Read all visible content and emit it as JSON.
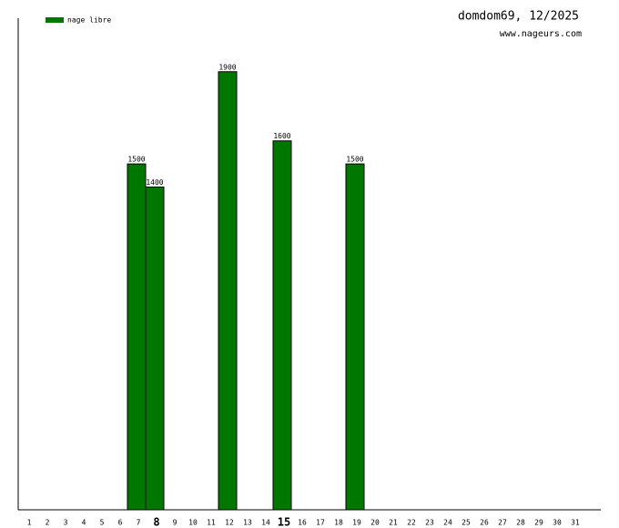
{
  "chart_data": {
    "type": "bar",
    "title": "domdom69, 12/2025",
    "subtitle": "www.nageurs.com",
    "categories": [
      "1",
      "2",
      "3",
      "4",
      "5",
      "6",
      "7",
      "8",
      "9",
      "10",
      "11",
      "12",
      "13",
      "14",
      "15",
      "16",
      "17",
      "18",
      "19",
      "20",
      "21",
      "22",
      "23",
      "24",
      "25",
      "26",
      "27",
      "28",
      "29",
      "30",
      "31"
    ],
    "emphasized_categories": [
      7,
      14
    ],
    "series": [
      {
        "name": "nage libre",
        "color": "#007700",
        "values": [
          null,
          null,
          null,
          null,
          null,
          null,
          1500,
          1400,
          null,
          null,
          null,
          1900,
          null,
          null,
          1600,
          null,
          null,
          null,
          1500,
          null,
          null,
          null,
          null,
          null,
          null,
          null,
          null,
          null,
          null,
          null,
          null
        ]
      }
    ],
    "ylim": [
      0,
      2132
    ],
    "legend": "top-left"
  }
}
